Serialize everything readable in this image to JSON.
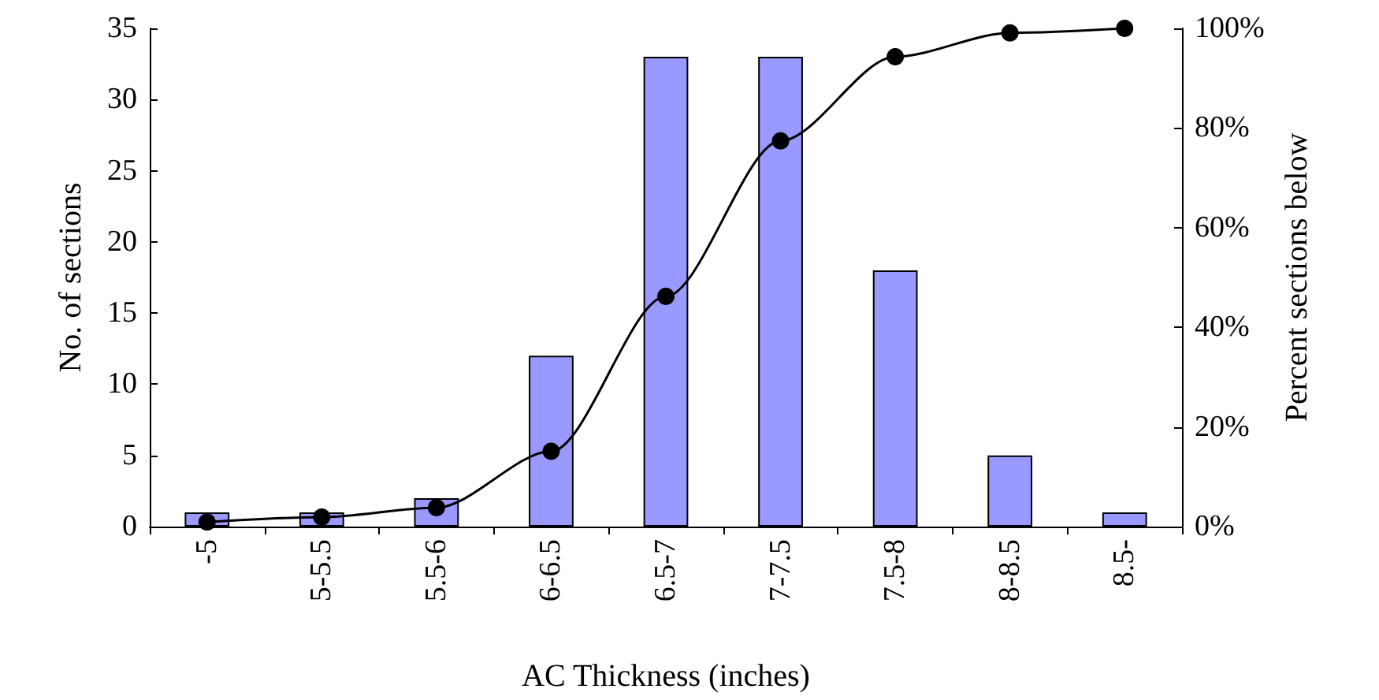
{
  "chart_data": {
    "type": "bar",
    "xlabel": "AC Thickness (inches)",
    "ylabel": "No. of sections",
    "y2label": "Percent sections below",
    "categories": [
      "-5",
      "5-5.5",
      "5.5-6",
      "6-6.5",
      "6.5-7",
      "7-7.5",
      "7.5-8",
      "8-8.5",
      "8.5-"
    ],
    "series": [
      {
        "color": "#9999ff",
        "values": [
          1,
          1,
          2,
          12,
          33,
          33,
          18,
          5,
          1
        ]
      },
      {
        "type": "line",
        "axis": "y2",
        "color": "#000000",
        "marker": "circle",
        "line_style": "solid",
        "values": [
          0.9,
          1.9,
          3.8,
          15.1,
          46.2,
          77.4,
          94.3,
          99.1,
          100
        ]
      }
    ],
    "ylim": [
      0,
      35
    ],
    "yticks": [
      0,
      5,
      10,
      15,
      20,
      25,
      30,
      35
    ],
    "y2lim": [
      0,
      100
    ],
    "y2ticks": [
      {
        "value": 0,
        "label": "0%"
      },
      {
        "value": 20,
        "label": "20%"
      },
      {
        "value": 40,
        "label": "40%"
      },
      {
        "value": 60,
        "label": "60%"
      },
      {
        "value": 80,
        "label": "80%"
      },
      {
        "value": 100,
        "label": "100%"
      }
    ],
    "grid": false
  }
}
